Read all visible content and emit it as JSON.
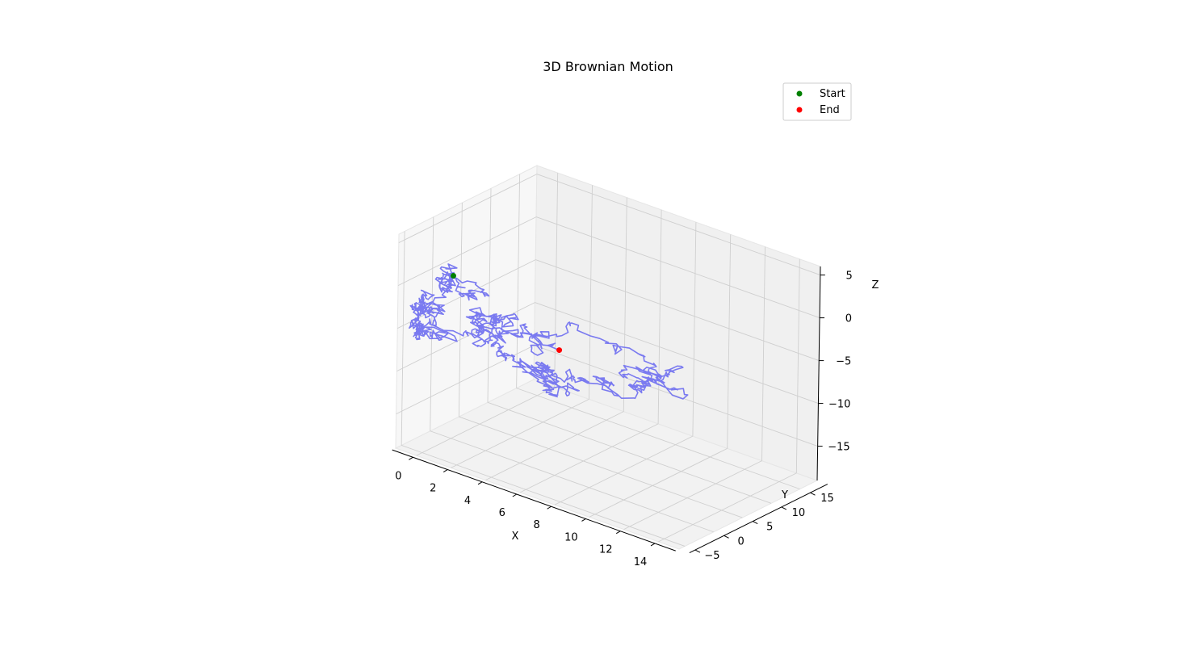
{
  "chart_data": {
    "type": "line3d",
    "title": "3D Brownian Motion",
    "xlabel": "X",
    "ylabel": "Y",
    "zlabel": "Z",
    "xlim": [
      -1.2,
      15.2
    ],
    "ylim": [
      -6,
      18
    ],
    "zlim": [
      -19,
      6
    ],
    "x_ticks": [
      0,
      2,
      4,
      6,
      8,
      10,
      12,
      14
    ],
    "y_ticks": [
      -5,
      0,
      5,
      10,
      15
    ],
    "z_ticks": [
      5,
      0,
      -5,
      -10,
      -15
    ],
    "grid": true,
    "series": [
      {
        "name": "path",
        "color": "#7a7af0",
        "alpha": 0.5,
        "steps": 1000,
        "start": [
          0,
          0,
          0
        ],
        "end": [
          5.5,
          2.0,
          -5.4
        ]
      },
      {
        "name": "Start",
        "marker": "point",
        "color": "#008000",
        "x": 0,
        "y": 0,
        "z": 0
      },
      {
        "name": "End",
        "marker": "point",
        "color": "#ff0000",
        "x": 5.5,
        "y": 2.0,
        "z": -5.4
      }
    ],
    "legend": {
      "placement": "upper-right",
      "entries": [
        "Start",
        "End"
      ]
    }
  }
}
